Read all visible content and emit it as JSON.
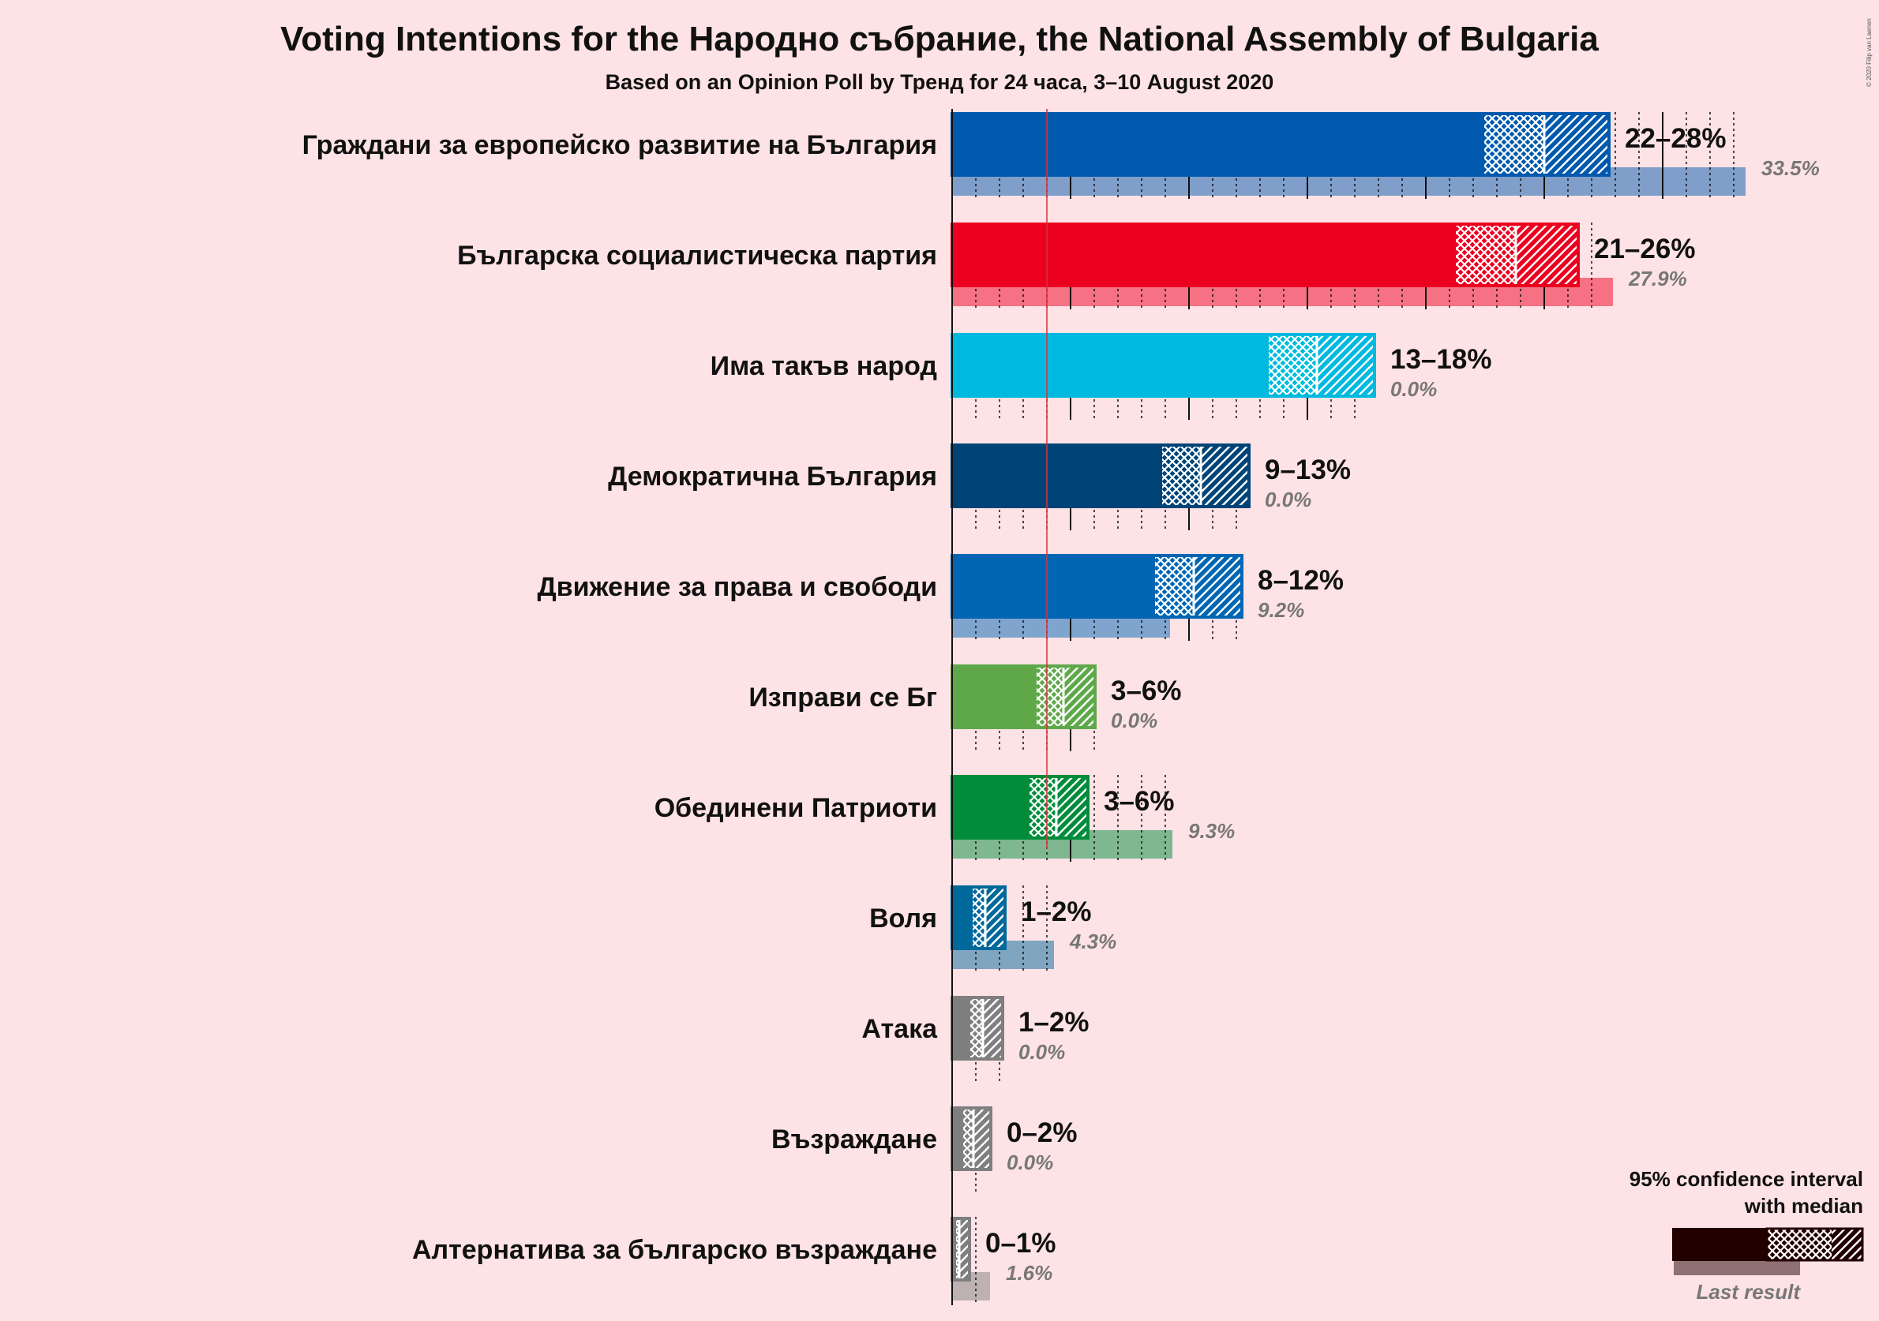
{
  "chart_data": {
    "type": "bar",
    "title": "Voting Intentions for the Народно събрание, the National Assembly of Bulgaria",
    "subtitle": "Based on an Opinion Poll by Тренд for 24 часа, 3–10 August 2020",
    "copyright": "© 2020 Filip van Laenen",
    "unit": "%",
    "threshold": 4,
    "series": [
      {
        "name": "Граждани за европейско развитие на България",
        "label": "22–28%",
        "last_label": "33.5%",
        "color": "#0059ad",
        "ci_low": 22.4,
        "q_low": 25.0,
        "q_high": 25.0,
        "ci_high": 27.8,
        "last": 33.5
      },
      {
        "name": "Българска социалистическа партия",
        "label": "21–26%",
        "last_label": "27.9%",
        "color": "#ec001f",
        "ci_low": 21.2,
        "q_low": 23.8,
        "q_high": 23.8,
        "ci_high": 26.5,
        "last": 27.9
      },
      {
        "name": "Има такъв народ",
        "label": "13–18%",
        "last_label": "0.0%",
        "color": "#00b9df",
        "ci_low": 13.3,
        "q_low": 15.4,
        "q_high": 15.4,
        "ci_high": 17.9,
        "last": 0.0
      },
      {
        "name": "Демократична България",
        "label": "9–13%",
        "last_label": "0.0%",
        "color": "#004477",
        "ci_low": 8.8,
        "q_low": 10.5,
        "q_high": 10.5,
        "ci_high": 12.6,
        "last": 0.0
      },
      {
        "name": "Движение за права и свободи",
        "label": "8–12%",
        "last_label": "9.2%",
        "color": "#0066b3",
        "ci_low": 8.5,
        "q_low": 10.2,
        "q_high": 10.2,
        "ci_high": 12.3,
        "last": 9.2
      },
      {
        "name": "Изправи се Бг",
        "label": "3–6%",
        "last_label": "0.0%",
        "color": "#5ea84a",
        "ci_low": 3.5,
        "q_low": 4.7,
        "q_high": 4.7,
        "ci_high": 6.1,
        "last": 0.0
      },
      {
        "name": "Обединени Патриоти",
        "label": "3–6%",
        "last_label": "9.3%",
        "color": "#008c3a",
        "ci_low": 3.2,
        "q_low": 4.4,
        "q_high": 4.4,
        "ci_high": 5.8,
        "last": 9.3
      },
      {
        "name": "Воля",
        "label": "1–2%",
        "last_label": "4.3%",
        "color": "#00689a",
        "ci_low": 0.8,
        "q_low": 1.4,
        "q_high": 1.4,
        "ci_high": 2.3,
        "last": 4.3
      },
      {
        "name": "Атака",
        "label": "1–2%",
        "last_label": "0.0%",
        "color": "#7f7f7f",
        "ci_low": 0.7,
        "q_low": 1.3,
        "q_high": 1.3,
        "ci_high": 2.2,
        "last": 0.0
      },
      {
        "name": "Възраждане",
        "label": "0–2%",
        "last_label": "0.0%",
        "color": "#7f7f7f",
        "ci_low": 0.4,
        "q_low": 0.9,
        "q_high": 0.9,
        "ci_high": 1.7,
        "last": 0.0
      },
      {
        "name": "Алтернатива за българско възраждане",
        "label": "0–1%",
        "last_label": "1.6%",
        "color": "#7f7f7f",
        "ci_low": 0.1,
        "q_low": 0.3,
        "q_high": 0.3,
        "ci_high": 0.8,
        "last": 1.6
      }
    ],
    "legend": {
      "line1": "95% confidence interval",
      "line2": "with median",
      "last_result": "Last result",
      "position": "bottom-right",
      "color": "#220000"
    }
  }
}
